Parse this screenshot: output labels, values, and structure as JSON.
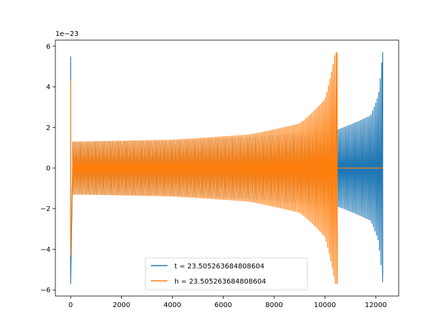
{
  "chart_data": {
    "type": "line",
    "title": "",
    "xlabel": "",
    "ylabel": "",
    "y_scale_label": "1e−23",
    "xlim": [
      -600,
      12900
    ],
    "ylim": [
      -6.3,
      6.3
    ],
    "xticks": [
      0,
      2000,
      4000,
      6000,
      8000,
      10000,
      12000
    ],
    "xtick_labels": [
      "0",
      "2000",
      "4000",
      "6000",
      "8000",
      "10000",
      "12000"
    ],
    "yticks": [
      -6,
      -4,
      -2,
      0,
      2,
      4,
      6
    ],
    "ytick_labels": [
      "−6",
      "−4",
      "−2",
      "0",
      "2",
      "4",
      "6"
    ],
    "grid": false,
    "legend_position": "lower-center",
    "series": [
      {
        "name": "t = 23.505263684808604",
        "color": "#1f77b4",
        "end_index": 12270,
        "spike_index": 0,
        "spike_max": 5.5,
        "spike_min": -5.7,
        "envelope": [
          [
            80,
            1.3
          ],
          [
            4000,
            1.35
          ],
          [
            8000,
            1.6
          ],
          [
            10500,
            1.9
          ],
          [
            11800,
            2.6
          ],
          [
            12100,
            3.6
          ],
          [
            12270,
            5.7
          ]
        ],
        "envelope_min_final": -5.2
      },
      {
        "name": "h = 23.505263684808604",
        "color": "#ff7f0e",
        "end_index": 10480,
        "spike_index": 0,
        "spike_max": 4.3,
        "spike_min": -4.3,
        "envelope": [
          [
            80,
            1.3
          ],
          [
            4000,
            1.4
          ],
          [
            7000,
            1.65
          ],
          [
            9000,
            2.2
          ],
          [
            10000,
            3.4
          ],
          [
            10400,
            5.7
          ]
        ],
        "envelope_min_final": -5.7,
        "flat_after": [
          10480,
          12270
        ]
      }
    ]
  }
}
